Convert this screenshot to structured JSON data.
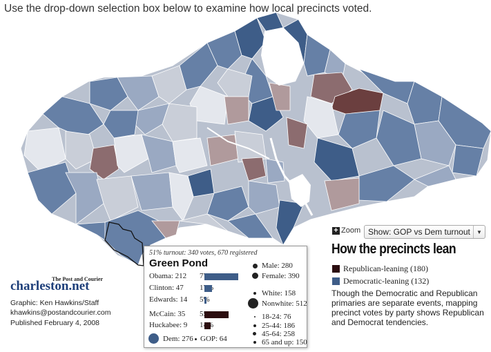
{
  "instruction": "Use the drop-down selection box below to examine how local precincts voted.",
  "map": {
    "colors": {
      "dem_strong": "#3e5d88",
      "dem_mid": "#6680a6",
      "dem_light": "#9aa9c2",
      "neutral": "#c9ced8",
      "pale": "#e4e7ed",
      "rep_light": "#b09a9c",
      "rep_mid": "#8c6c6f",
      "rep_strong": "#6b3f3f",
      "water": "#ffffff"
    }
  },
  "controls": {
    "zoom_label": "Zoom",
    "select_value": "Show: GOP vs Dem turnout"
  },
  "legend": {
    "title": "How the precincts lean",
    "items": [
      {
        "label": "Republican-leaning (180)",
        "color": "#2b0d0f"
      },
      {
        "label": "Democratic-leaning (132)",
        "color": "#3e5d88"
      }
    ],
    "note": "Though the Democratic and Republican primaries are separate events, mapping precinct votes by party shows Republican and Democrat tendencies."
  },
  "precinct": {
    "turnout_text": "51% turnout: 340 votes, 670 registered",
    "name": "Green Pond",
    "dem": [
      {
        "label": "Obama: 212",
        "pct": "77%",
        "value": 77
      },
      {
        "label": "Clinton: 47",
        "pct": "17%",
        "value": 17
      },
      {
        "label": "Edwards: 14",
        "pct": "5%",
        "value": 5
      }
    ],
    "gop": [
      {
        "label": "McCain: 35",
        "pct": "55%",
        "value": 55
      },
      {
        "label": "Huckabee: 9",
        "pct": "14%",
        "value": 14
      }
    ],
    "totals": {
      "dem": "Dem: 276",
      "gop": "GOP: 64"
    },
    "gender": {
      "male": "Male: 280",
      "female": "Female: 390"
    },
    "race": {
      "white": "White: 158",
      "nonwhite": "Nonwhite: 512"
    },
    "ages": [
      "18-24: 76",
      "25-44: 186",
      "45-64: 258",
      "65 and up: 150"
    ],
    "bar_colors": {
      "dem": "#3e5d88",
      "gop": "#2b0d0f"
    }
  },
  "branding": {
    "paper": "The Post and Courier",
    "site": "charleston.net",
    "credit_lines": [
      "Graphic: Ken Hawkins/Staff",
      "khawkins@postandcourier.com",
      "Published February 4, 2008"
    ]
  }
}
